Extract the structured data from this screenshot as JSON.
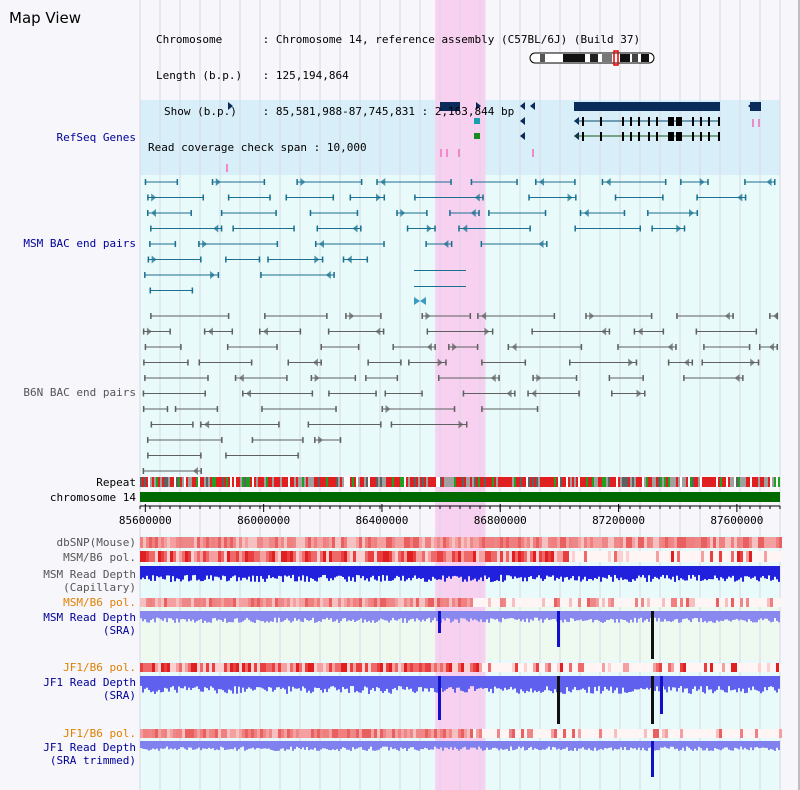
{
  "view_title": "Map View",
  "info": {
    "chromosome_label": "Chromosome",
    "chromosome_value": "Chromosome 14, reference assembly (C57BL/6J) (Build 37)",
    "length_label": "Length (b.p.)",
    "length_value": "125,194,864",
    "show_label": "Show (b.p.)",
    "show_value": "85,581,988-87,745,831 : 2,163,844 bp",
    "coverage_label": "Read coverage check span",
    "coverage_value": "10,000"
  },
  "tracks": {
    "refseq_genes": "RefSeq Genes",
    "msm_bac": "MSM BAC end pairs",
    "b6n_bac": "B6N BAC end pairs",
    "repeat": "Repeat",
    "chromosome": "chromosome 14",
    "dbsnp": "dbSNP(Mouse)",
    "msm_b6_pol": "MSM/B6 pol.",
    "msm_read_depth_cap_1": "MSM Read Depth",
    "msm_read_depth_cap_2": "(Capillary)",
    "msm_b6_pol_sra": "MSM/B6 pol.",
    "msm_read_depth_sra_1": "MSM Read Depth",
    "msm_read_depth_sra_2": "(SRA)",
    "jf1_b6_pol": "JF1/B6 pol.",
    "jf1_read_depth_sra_1": "JF1 Read Depth",
    "jf1_read_depth_sra_2": "(SRA)",
    "jf1_b6_pol_trim": "JF1/B6 pol.",
    "jf1_read_depth_trim_1": "JF1 Read Depth",
    "jf1_read_depth_trim_2": "(SRA trimmed)"
  },
  "axis": {
    "range_bp": [
      85581988,
      87745831
    ],
    "ticks": [
      {
        "label": "85600000",
        "bp": 85600000
      },
      {
        "label": "86000000",
        "bp": 86000000
      },
      {
        "label": "86400000",
        "bp": 86400000
      },
      {
        "label": "86800000",
        "bp": 86800000
      },
      {
        "label": "87200000",
        "bp": 87200000
      },
      {
        "label": "87600000",
        "bp": 87600000
      }
    ]
  },
  "highlight_region_bp": [
    86580000,
    86750000
  ],
  "colors": {
    "refseq_bg": "#d8eef8",
    "track_bg": "#e8fafa",
    "highlight": "#f8d0f0",
    "gene": "#0a2a5a",
    "msm_bac": "#1a7090",
    "b6n_bac": "#606060",
    "chromosome": "#006a00",
    "depth_blue": "#2222dd",
    "depth_sra": "#6666ee"
  }
}
